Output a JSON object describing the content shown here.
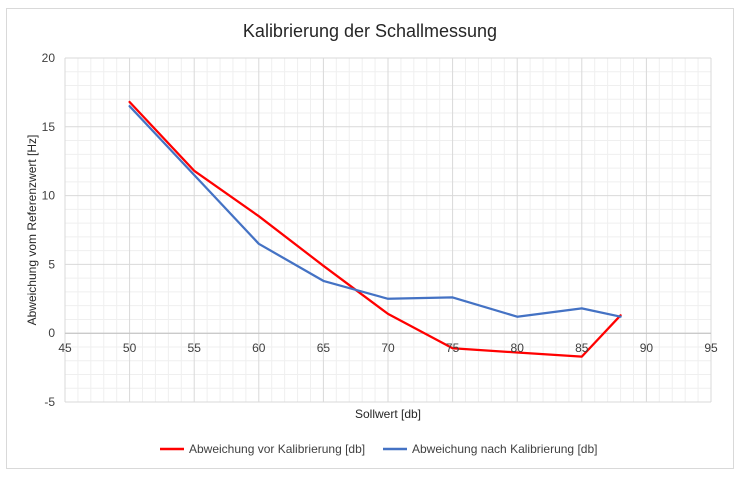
{
  "chart_data": {
    "type": "line",
    "title": "Kalibrierung der Schallmessung",
    "xlabel": "Sollwert [db]",
    "ylabel": "Abweichung vom Referenzwert [Hz]",
    "xlim": [
      45,
      95
    ],
    "ylim": [
      -5,
      20
    ],
    "xticks": [
      "45",
      "50",
      "55",
      "60",
      "65",
      "70",
      "75",
      "80",
      "85",
      "90",
      "95"
    ],
    "yticks": [
      "-5",
      "0",
      "5",
      "10",
      "15",
      "20"
    ],
    "grid": true,
    "legend_position": "bottom",
    "series": [
      {
        "name": "Abweichung vor Kalibrierung [db]",
        "color": "#ff0000",
        "x": [
          50,
          55,
          60,
          65,
          70,
          75,
          80,
          85,
          88
        ],
        "y": [
          16.8,
          11.8,
          8.5,
          4.9,
          1.4,
          -1.1,
          -1.4,
          -1.7,
          1.3
        ]
      },
      {
        "name": "Abweichung nach Kalibrierung [db]",
        "color": "#4472c4",
        "x": [
          50,
          55,
          60,
          65,
          70,
          75,
          80,
          85,
          88
        ],
        "y": [
          16.5,
          11.5,
          6.5,
          3.8,
          2.5,
          2.6,
          1.2,
          1.8,
          1.2
        ]
      }
    ]
  }
}
